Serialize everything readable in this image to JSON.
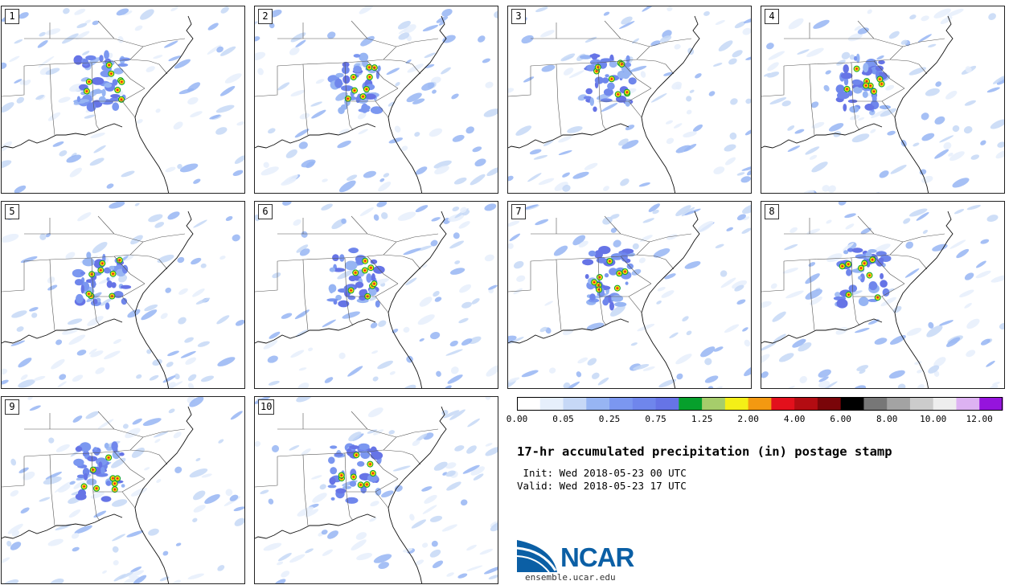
{
  "title": "17-hr accumulated precipitation (in) postage stamp",
  "init_line": " Init: Wed 2018-05-23 00 UTC",
  "valid_line": "Valid: Wed 2018-05-23 17 UTC",
  "members": [
    {
      "label": "1"
    },
    {
      "label": "2"
    },
    {
      "label": "3"
    },
    {
      "label": "4"
    },
    {
      "label": "5"
    },
    {
      "label": "6"
    },
    {
      "label": "7"
    },
    {
      "label": "8"
    },
    {
      "label": "9"
    },
    {
      "label": "10"
    }
  ],
  "colorbar": {
    "colors": [
      "#ffffff",
      "#e6effb",
      "#c6d8f6",
      "#97b5f3",
      "#7b97f0",
      "#6f86ec",
      "#6674e6",
      "#06a02c",
      "#a6cd6b",
      "#f4ef17",
      "#f39911",
      "#e3101c",
      "#b30c12",
      "#7a0509",
      "#000000",
      "#777777",
      "#a3a3a3",
      "#cccccc",
      "#eeeeee",
      "#ddb2f2",
      "#9514dd"
    ],
    "tick_labels": [
      "0.00",
      "0.05",
      "0.25",
      "0.75",
      "1.25",
      "2.00",
      "4.00",
      "6.00",
      "8.00",
      "10.00",
      "12.00"
    ]
  },
  "logo": {
    "text": "NCAR",
    "url": "ensemble.ucar.edu"
  }
}
